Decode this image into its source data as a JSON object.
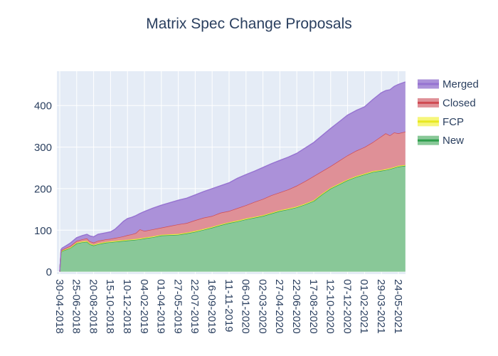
{
  "title": "Matrix Spec Change Proposals",
  "colors": {
    "paper_bg": "#ffffff",
    "plot_bg": "#e5ecf6",
    "grid": "#ffffff",
    "text": "#2a3f5f"
  },
  "legend": {
    "position": "right",
    "items": [
      "Merged",
      "Closed",
      "FCP",
      "New"
    ]
  },
  "chart_data": {
    "type": "area",
    "stacked": true,
    "title": "Matrix Spec Change Proposals",
    "xlabel": "",
    "ylabel": "",
    "grid": true,
    "y_ticks": [
      0,
      100,
      200,
      300,
      400
    ],
    "ylim": [
      -6,
      483
    ],
    "x_unit": "days since 30-04-2018",
    "x_tick_interval_days": 56,
    "x_tick_labels": [
      "30-04-2018",
      "25-06-2018",
      "20-08-2018",
      "15-10-2018",
      "10-12-2018",
      "04-02-2019",
      "01-04-2019",
      "27-05-2019",
      "22-07-2019",
      "16-09-2019",
      "11-11-2019",
      "06-01-2020",
      "02-03-2020",
      "27-04-2020",
      "22-06-2020",
      "17-08-2020",
      "12-10-2020",
      "07-12-2020",
      "01-02-2021",
      "29-03-2021",
      "24-05-2021"
    ],
    "x_days": [
      0,
      4,
      8,
      20,
      35,
      56,
      75,
      90,
      100,
      112,
      126,
      140,
      154,
      168,
      182,
      196,
      210,
      224,
      238,
      252,
      265,
      280,
      308,
      336,
      364,
      392,
      420,
      448,
      476,
      504,
      532,
      560,
      588,
      616,
      644,
      672,
      700,
      728,
      756,
      784,
      812,
      840,
      868,
      896,
      924,
      952,
      980,
      1008,
      1036,
      1064,
      1078,
      1092,
      1106,
      1120,
      1143
    ],
    "stack_order_bottom_to_top": [
      "New",
      "FCP",
      "Closed",
      "Merged"
    ],
    "series": [
      {
        "name": "New",
        "fill": "#89c898",
        "line": "#2f9e4c",
        "values": [
          0,
          46,
          50,
          53,
          57,
          68,
          71,
          72,
          66,
          63,
          66,
          68,
          70,
          71,
          72,
          73,
          74,
          75,
          76,
          77,
          78,
          80,
          83,
          87,
          88,
          89,
          92,
          96,
          101,
          106,
          112,
          117,
          121,
          126,
          130,
          134,
          140,
          146,
          150,
          155,
          162,
          170,
          186,
          200,
          210,
          220,
          228,
          234,
          240,
          243,
          245,
          247,
          250,
          253,
          255
        ]
      },
      {
        "name": "FCP",
        "fill": "#f6f67b",
        "line": "#e8e822",
        "values": [
          0,
          1,
          1,
          1,
          1,
          2,
          2,
          2,
          2,
          2,
          2,
          2,
          2,
          2,
          2,
          2,
          2,
          2,
          2,
          2,
          2,
          2,
          2,
          2,
          2,
          2,
          2,
          2,
          2,
          2,
          2,
          2,
          2,
          2,
          2,
          2,
          2,
          2,
          2,
          2,
          2,
          2,
          2,
          2,
          2,
          2,
          2,
          2,
          2,
          2,
          2,
          2,
          2,
          2,
          2
        ]
      },
      {
        "name": "Closed",
        "fill": "#df9097",
        "line": "#d04a52",
        "values": [
          0,
          2,
          2,
          3,
          4,
          4,
          5,
          6,
          5,
          5,
          6,
          6,
          6,
          6,
          7,
          8,
          9,
          11,
          12,
          14,
          22,
          16,
          17,
          17,
          20,
          23,
          23,
          26,
          27,
          26,
          28,
          27,
          30,
          32,
          36,
          39,
          42,
          43,
          46,
          50,
          54,
          58,
          54,
          52,
          55,
          58,
          61,
          64,
          70,
          81,
          86,
          79,
          83,
          78,
          80
        ]
      },
      {
        "name": "Merged",
        "fill": "#ab91d9",
        "line": "#9673d1",
        "values": [
          0,
          4,
          4,
          5,
          7,
          8,
          9,
          10,
          13,
          14,
          16,
          16,
          16,
          17,
          21,
          28,
          36,
          40,
          41,
          42,
          38,
          47,
          51,
          54,
          56,
          58,
          60,
          61,
          63,
          66,
          65,
          68,
          72,
          74,
          74,
          76,
          76,
          77,
          78,
          78,
          80,
          81,
          86,
          91,
          94,
          97,
          97,
          97,
          103,
          105,
          103,
          110,
          111,
          118,
          120
        ]
      }
    ]
  }
}
